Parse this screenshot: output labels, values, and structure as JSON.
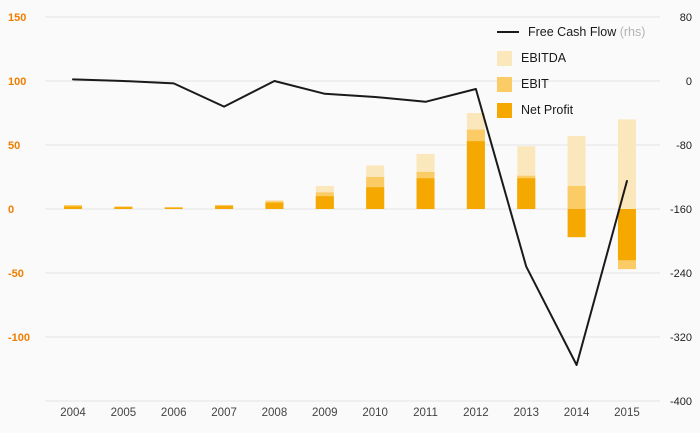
{
  "legend": {
    "fcf_label": "Free Cash Flow",
    "fcf_suffix": " (rhs)",
    "items": [
      "EBITDA",
      "EBIT",
      "Net Profit"
    ]
  },
  "colors": {
    "background": "#fafafa",
    "grid": "#e4e4e4",
    "ebitda": "#fbe7bc",
    "ebit": "#fbcb66",
    "net_profit": "#f5a800",
    "fcf_line": "#1a1a1a",
    "left_axis_label": "#ef7d00",
    "right_axis_label": "#222222",
    "x_axis_label": "#444444"
  },
  "chart_data": {
    "type": "bar+line",
    "title": "",
    "categories": [
      "2004",
      "2005",
      "2006",
      "2007",
      "2008",
      "2009",
      "2010",
      "2011",
      "2012",
      "2013",
      "2014",
      "2015"
    ],
    "series": [
      {
        "name": "EBITDA",
        "type": "bar",
        "axis": "left",
        "color_key": "ebitda",
        "values": [
          3,
          2,
          1.5,
          3,
          7,
          18,
          34,
          43,
          75,
          49,
          57,
          70
        ]
      },
      {
        "name": "EBIT",
        "type": "bar",
        "axis": "left",
        "color_key": "ebit",
        "values": [
          3,
          2,
          1.5,
          3,
          6,
          13,
          25,
          29,
          62,
          26,
          18,
          -47
        ]
      },
      {
        "name": "Net Profit",
        "type": "bar",
        "axis": "left",
        "color_key": "net_profit",
        "values": [
          2,
          1.5,
          1,
          2.5,
          5,
          10,
          17,
          24,
          53,
          24,
          -22,
          -40
        ]
      },
      {
        "name": "Free Cash Flow",
        "type": "line",
        "axis": "right",
        "color_key": "fcf_line",
        "values": [
          2,
          0,
          -3,
          -32,
          0,
          -16,
          -20,
          -26,
          -10,
          -232,
          -355,
          -125
        ]
      }
    ],
    "left_axis": {
      "ticks": [
        150,
        100,
        50,
        0,
        -50,
        -100
      ],
      "range": [
        -150,
        150
      ]
    },
    "right_axis": {
      "ticks": [
        80,
        0,
        -80,
        -160,
        -240,
        -320,
        -400
      ],
      "range": [
        -400,
        80
      ]
    },
    "grid": true,
    "legend_position": "top-right"
  }
}
